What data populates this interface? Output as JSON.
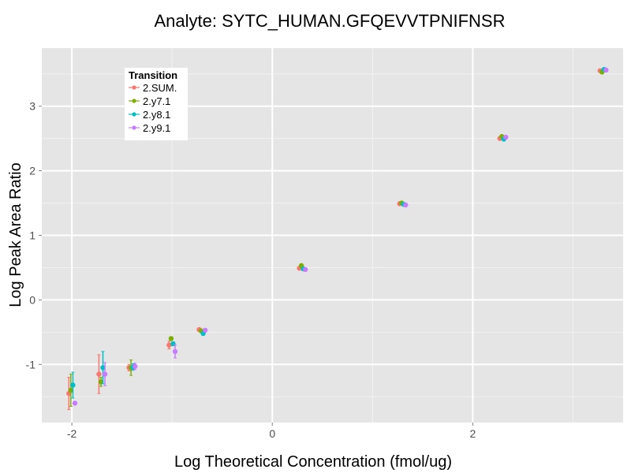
{
  "chart_data": {
    "type": "scatter",
    "title": "Analyte: SYTC_HUMAN.GFQEVVTPNIFNSR",
    "xlabel": "Log Theoretical Concentration (fmol/ug)",
    "ylabel": "Log Peak Area Ratio",
    "xlim": [
      -2.3,
      3.5
    ],
    "ylim": [
      -1.9,
      3.9
    ],
    "xticks": [
      -2,
      0,
      2
    ],
    "yticks": [
      -1,
      0,
      1,
      2,
      3
    ],
    "grid": true,
    "legend": {
      "title": "Transition",
      "position": "top-left"
    },
    "series": [
      {
        "name": "2.SUM.",
        "color": "#F8766D",
        "dx": -0.03,
        "points": [
          {
            "x": -2.0,
            "y": -1.45,
            "err": 0.25
          },
          {
            "x": -1.7,
            "y": -1.15,
            "err": 0.3
          },
          {
            "x": -1.4,
            "y": -1.05,
            "err": 0.05
          },
          {
            "x": -1.0,
            "y": -0.7,
            "err": 0.06
          },
          {
            "x": -0.7,
            "y": -0.46,
            "err": 0
          },
          {
            "x": 0.3,
            "y": 0.49,
            "err": 0
          },
          {
            "x": 1.3,
            "y": 1.49,
            "err": 0
          },
          {
            "x": 2.3,
            "y": 2.5,
            "err": 0
          },
          {
            "x": 3.3,
            "y": 3.55,
            "err": 0
          }
        ]
      },
      {
        "name": "2.y7.1",
        "color": "#7CAE00",
        "dx": -0.01,
        "points": [
          {
            "x": -2.0,
            "y": -1.4,
            "err": 0.25
          },
          {
            "x": -1.7,
            "y": -1.27,
            "err": 0.07
          },
          {
            "x": -1.4,
            "y": -1.05,
            "err": 0.12
          },
          {
            "x": -1.0,
            "y": -0.6,
            "err": 0.03
          },
          {
            "x": -0.7,
            "y": -0.48,
            "err": 0
          },
          {
            "x": 0.3,
            "y": 0.53,
            "err": 0
          },
          {
            "x": 1.3,
            "y": 1.5,
            "err": 0
          },
          {
            "x": 2.3,
            "y": 2.53,
            "err": 0
          },
          {
            "x": 3.3,
            "y": 3.53,
            "err": 0
          }
        ]
      },
      {
        "name": "2.y8.1",
        "color": "#00BFC4",
        "dx": 0.01,
        "points": [
          {
            "x": -2.0,
            "y": -1.32,
            "err": 0.2
          },
          {
            "x": -1.7,
            "y": -1.05,
            "err": 0.25
          },
          {
            "x": -1.4,
            "y": -1.04,
            "err": 0.05
          },
          {
            "x": -1.0,
            "y": -0.68,
            "err": 0.03
          },
          {
            "x": -0.7,
            "y": -0.52,
            "err": 0.03
          },
          {
            "x": 0.3,
            "y": 0.48,
            "err": 0
          },
          {
            "x": 1.3,
            "y": 1.48,
            "err": 0
          },
          {
            "x": 2.3,
            "y": 2.49,
            "err": 0
          },
          {
            "x": 3.3,
            "y": 3.57,
            "err": 0
          }
        ]
      },
      {
        "name": "2.y9.1",
        "color": "#C77CFF",
        "dx": 0.03,
        "points": [
          {
            "x": -2.0,
            "y": -1.6,
            "err": 0
          },
          {
            "x": -1.7,
            "y": -1.15,
            "err": 0.18
          },
          {
            "x": -1.4,
            "y": -1.03,
            "err": 0.05
          },
          {
            "x": -1.0,
            "y": -0.8,
            "err": 0.1
          },
          {
            "x": -0.7,
            "y": -0.47,
            "err": 0
          },
          {
            "x": 0.3,
            "y": 0.47,
            "err": 0
          },
          {
            "x": 1.3,
            "y": 1.47,
            "err": 0
          },
          {
            "x": 2.3,
            "y": 2.52,
            "err": 0
          },
          {
            "x": 3.3,
            "y": 3.56,
            "err": 0
          }
        ]
      }
    ]
  }
}
